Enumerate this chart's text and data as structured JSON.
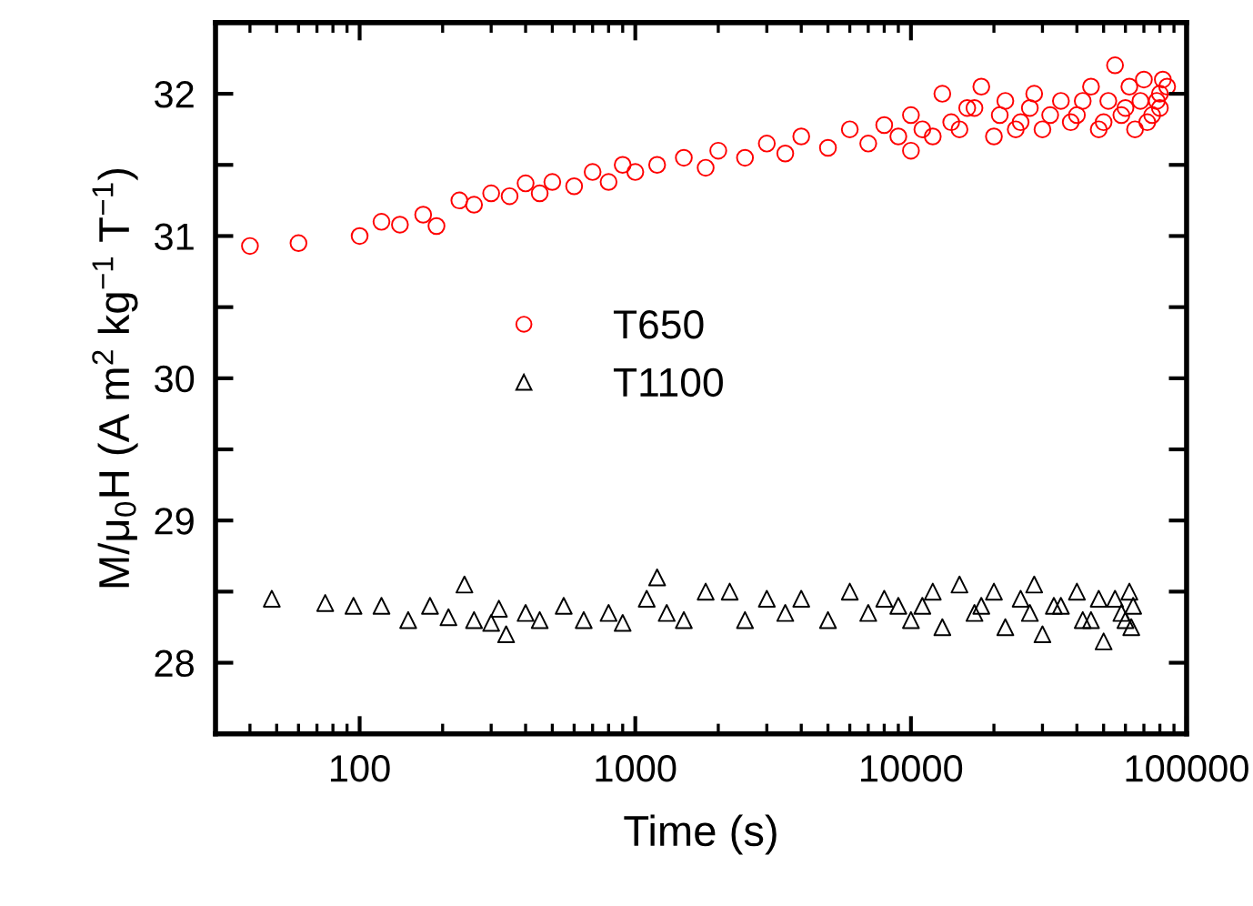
{
  "chart_data": {
    "type": "scatter",
    "xlabel": "Time (s)",
    "ylabel": "M/μ$_{0}$H (A m$^{2}$ kg$^{−1}$ T$^{−1}$)",
    "log": "x",
    "xlim": [
      30,
      100000
    ],
    "xticks": [
      100,
      1000,
      10000,
      100000
    ],
    "ylim": [
      27.5,
      32.5
    ],
    "yticks": [
      {
        "value": 27.5,
        "label": null
      },
      28,
      {
        "value": 28.5,
        "label": null
      },
      29,
      {
        "value": 29.5,
        "label": null
      },
      30,
      {
        "value": 30.5,
        "label": null
      },
      31,
      {
        "value": 31.5,
        "label": null
      },
      32,
      {
        "value": 32.5,
        "label": null
      }
    ],
    "grid": false,
    "legend": "center",
    "series": [
      {
        "name": "T650",
        "color": "#ff0000",
        "marker": "circle",
        "x": [
          40,
          60,
          100,
          120,
          140,
          170,
          190,
          230,
          260,
          300,
          350,
          400,
          450,
          500,
          600,
          700,
          800,
          900,
          1000,
          1200,
          1500,
          1800,
          2000,
          2500,
          3000,
          3500,
          4000,
          5000,
          6000,
          7000,
          8000,
          9000,
          10000,
          10000,
          11000,
          12000,
          13000,
          14000,
          15000,
          16000,
          17000,
          18000,
          20000,
          21000,
          22000,
          24000,
          25000,
          27000,
          28000,
          30000,
          32000,
          35000,
          38000,
          40000,
          42000,
          45000,
          48000,
          50000,
          52000,
          55000,
          58000,
          60000,
          62000,
          65000,
          68000,
          70000,
          72000,
          75000,
          78000,
          80000,
          80000,
          82000,
          85000
        ],
        "values": [
          30.93,
          30.95,
          31.0,
          31.1,
          31.08,
          31.15,
          31.07,
          31.25,
          31.22,
          31.3,
          31.28,
          31.37,
          31.3,
          31.38,
          31.35,
          31.45,
          31.38,
          31.5,
          31.45,
          31.5,
          31.55,
          31.48,
          31.6,
          31.55,
          31.65,
          31.58,
          31.7,
          31.62,
          31.75,
          31.65,
          31.78,
          31.7,
          31.6,
          31.85,
          31.75,
          31.7,
          32.0,
          31.8,
          31.75,
          31.9,
          31.9,
          32.05,
          31.7,
          31.85,
          31.95,
          31.75,
          31.8,
          31.9,
          32.0,
          31.75,
          31.85,
          31.95,
          31.8,
          31.85,
          31.95,
          32.05,
          31.75,
          31.8,
          31.95,
          32.2,
          31.85,
          31.9,
          32.05,
          31.75,
          31.95,
          32.1,
          31.8,
          31.85,
          31.95,
          32.0,
          31.9,
          32.1,
          32.05
        ]
      },
      {
        "name": "T1100",
        "color": "#000000",
        "marker": "triangle",
        "x": [
          48,
          75,
          95,
          120,
          150,
          180,
          210,
          240,
          260,
          300,
          320,
          340,
          400,
          450,
          550,
          650,
          800,
          900,
          1100,
          1200,
          1300,
          1500,
          1800,
          2200,
          2500,
          3000,
          3500,
          4000,
          5000,
          6000,
          7000,
          8000,
          9000,
          10000,
          11000,
          12000,
          13000,
          15000,
          17000,
          18000,
          20000,
          22000,
          25000,
          27000,
          28000,
          30000,
          33000,
          35000,
          40000,
          42000,
          45000,
          48000,
          50000,
          55000,
          58000,
          60000,
          62000,
          63000,
          64000
        ],
        "values": [
          28.45,
          28.42,
          28.4,
          28.4,
          28.3,
          28.4,
          28.32,
          28.55,
          28.3,
          28.28,
          28.38,
          28.2,
          28.35,
          28.3,
          28.4,
          28.3,
          28.35,
          28.28,
          28.45,
          28.6,
          28.35,
          28.3,
          28.5,
          28.5,
          28.3,
          28.45,
          28.35,
          28.45,
          28.3,
          28.5,
          28.35,
          28.45,
          28.4,
          28.3,
          28.4,
          28.5,
          28.25,
          28.55,
          28.35,
          28.4,
          28.5,
          28.25,
          28.45,
          28.35,
          28.55,
          28.2,
          28.4,
          28.4,
          28.5,
          28.3,
          28.3,
          28.45,
          28.15,
          28.45,
          28.35,
          28.3,
          28.5,
          28.25,
          28.4
        ]
      }
    ]
  }
}
